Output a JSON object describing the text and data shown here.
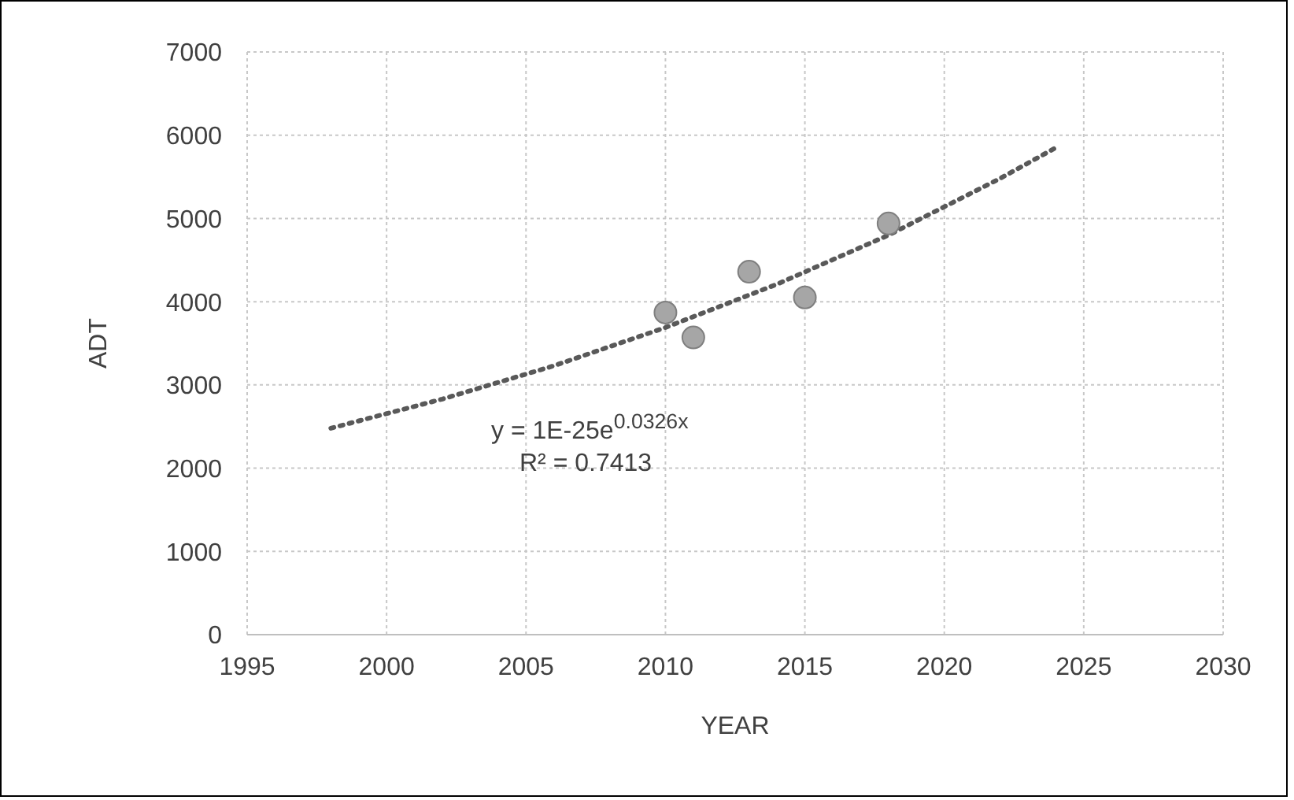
{
  "chart_data": {
    "type": "scatter",
    "xlabel": "YEAR",
    "ylabel": "ADT",
    "xlim": [
      1995,
      2030
    ],
    "xticks": [
      1995,
      2000,
      2005,
      2010,
      2015,
      2020,
      2025,
      2030
    ],
    "ylim": [
      0,
      7000
    ],
    "yticks": [
      0,
      1000,
      2000,
      3000,
      4000,
      5000,
      6000,
      7000
    ],
    "grid": true,
    "marker": "circle",
    "series": [
      {
        "color": "#a6a6a6",
        "x": [
          2010,
          2011,
          2013,
          2015,
          2018
        ],
        "values": [
          3870,
          3570,
          4360,
          4050,
          4940
        ]
      },
      {
        "type": "line",
        "color": "#595959",
        "line_style": "dotted",
        "marker": "none",
        "x": [
          1998,
          2002,
          2006,
          2010,
          2014,
          2018,
          2022,
          2024
        ],
        "values": [
          2480,
          2830,
          3230,
          3690,
          4210,
          4800,
          5480,
          5850
        ]
      }
    ],
    "annotations": [
      "y = 1E-25e$^{0.0326x}$",
      "R² = 0.7413"
    ]
  }
}
